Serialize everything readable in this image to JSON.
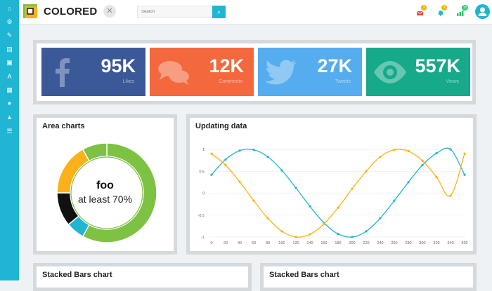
{
  "app": {
    "brand": "COLORED"
  },
  "search": {
    "placeholder": "Search"
  },
  "notifications": [
    {
      "icon": "envelope-icon",
      "count": "3",
      "color": "#e74c3c"
    },
    {
      "icon": "bell-icon",
      "count": "9",
      "color": "#f0b400"
    },
    {
      "icon": "chart-icon",
      "count": "15",
      "color": "#2ecc71"
    }
  ],
  "stats": [
    {
      "value": "95K",
      "label": "Likes",
      "color": "#3b5998",
      "icon": "facebook-icon"
    },
    {
      "value": "12K",
      "label": "Comments",
      "color": "#f4683d",
      "icon": "comments-icon"
    },
    {
      "value": "27K",
      "label": "Tweets",
      "color": "#55acee",
      "icon": "twitter-icon"
    },
    {
      "value": "557K",
      "label": "Views",
      "color": "#16a98a",
      "icon": "eye-icon"
    }
  ],
  "area_panel": {
    "title": "Area charts",
    "donut_title": "foo",
    "donut_subtitle": "at least 70%"
  },
  "updating_panel": {
    "title": "Updating data"
  },
  "stacked_left": {
    "title": "Stacked Bars chart"
  },
  "stacked_right": {
    "title": "Stacked Bars chart"
  },
  "chart_data": [
    {
      "type": "pie",
      "title": "",
      "slices": [
        {
          "name": "",
          "value": 58,
          "color": "#7dc242"
        },
        {
          "name": "",
          "value": 6,
          "color": "#1fb5d3"
        },
        {
          "name": "",
          "value": 11,
          "color": "#111111"
        },
        {
          "name": "",
          "value": 17,
          "color": "#fbb219"
        },
        {
          "name": "",
          "value": 8,
          "color": "#7dc242"
        }
      ]
    },
    {
      "type": "line",
      "title": "",
      "x": [
        0,
        20,
        40,
        60,
        80,
        100,
        120,
        140,
        160,
        180,
        200,
        220,
        240,
        260,
        280,
        300,
        320,
        340,
        360
      ],
      "series": [
        {
          "name": "",
          "color": "#1fb5d3",
          "values": [
            0.42,
            0.77,
            0.97,
            0.99,
            0.83,
            0.52,
            0.12,
            -0.3,
            -0.68,
            -0.93,
            -1.0,
            -0.87,
            -0.57,
            -0.17,
            0.25,
            0.64,
            0.91,
            1.0,
            0.42
          ]
        },
        {
          "name": "",
          "color": "#f8b219",
          "values": [
            0.9,
            0.64,
            0.26,
            -0.17,
            -0.57,
            -0.87,
            -1.0,
            -0.94,
            -0.7,
            -0.33,
            0.1,
            0.5,
            0.83,
            0.99,
            0.96,
            0.74,
            0.37,
            -0.06,
            0.9
          ]
        }
      ],
      "ylim": [
        -1,
        1
      ],
      "yticks": [
        "1",
        "0.5",
        "0",
        "-0.5",
        "-1"
      ],
      "xticks": [
        "0",
        "20",
        "40",
        "60",
        "80",
        "100",
        "120",
        "140",
        "160",
        "180",
        "200",
        "220",
        "240",
        "260",
        "280",
        "300",
        "320",
        "340",
        "360"
      ],
      "grid": true
    }
  ]
}
